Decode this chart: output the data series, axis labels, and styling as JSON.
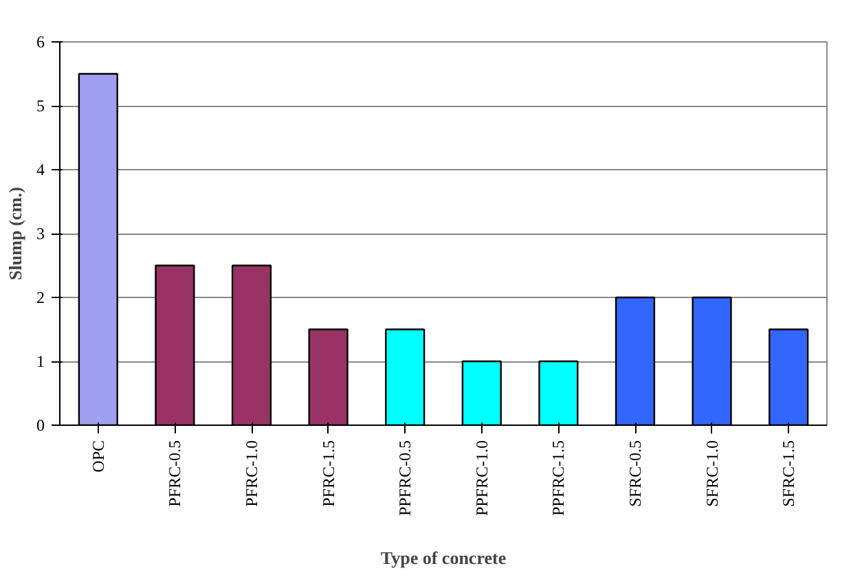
{
  "chart_data": {
    "type": "bar",
    "xlabel": "Type of concrete",
    "ylabel": "Slump (cm.)",
    "categories": [
      "OPC",
      "PFRC-0.5",
      "PFRC-1.0",
      "PFRC-1.5",
      "PPFRC-0.5",
      "PPFRC-1.0",
      "PPFRC-1.5",
      "SFRC-0.5",
      "SFRC-1.0",
      "SFRC-1.5"
    ],
    "values": [
      5.5,
      2.5,
      2.5,
      1.5,
      1.5,
      1.0,
      1.0,
      2.0,
      2.0,
      1.5
    ],
    "colors": [
      "#a0a0f0",
      "#993366",
      "#993366",
      "#993366",
      "#00ffff",
      "#00ffff",
      "#00ffff",
      "#3366ff",
      "#3366ff",
      "#3366ff"
    ],
    "ylim": [
      0,
      6
    ],
    "yticks": [
      0,
      1,
      2,
      3,
      4,
      5,
      6
    ],
    "grid": "y"
  }
}
